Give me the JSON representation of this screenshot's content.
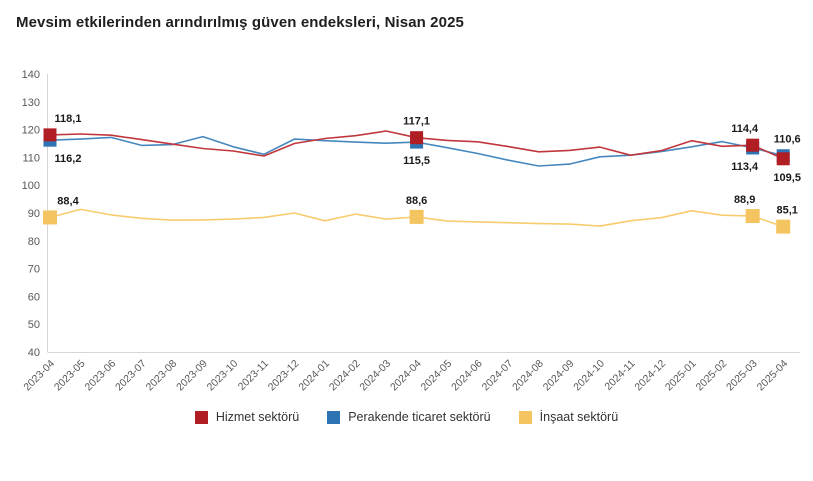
{
  "page": {
    "title": "Mevsim etkilerinden arındırılmış güven endeksleri, Nisan 2025"
  },
  "chart_data": {
    "type": "line",
    "title": "Mevsim etkilerinden arındırılmış güven endeksleri, Nisan 2025",
    "grid": "off",
    "legend_position": "bottom",
    "x_label_rotation": -45,
    "decimal_separator": ",",
    "categories": [
      "2023-04",
      "2023-05",
      "2023-06",
      "2023-07",
      "2023-08",
      "2023-09",
      "2023-10",
      "2023-11",
      "2023-12",
      "2024-01",
      "2024-02",
      "2024-03",
      "2024-04",
      "2024-05",
      "2024-06",
      "2024-07",
      "2024-08",
      "2024-09",
      "2024-10",
      "2024-11",
      "2024-12",
      "2025-01",
      "2025-02",
      "2025-03",
      "2025-04"
    ],
    "y_axis": {
      "min": 40,
      "max": 140,
      "step": 10,
      "ticks": [
        140,
        130,
        120,
        110,
        100,
        90,
        80,
        70,
        60,
        50,
        40
      ]
    },
    "series": [
      {
        "name": "İnşaat sektörü",
        "line_color": "#f8cb6e",
        "marker_color": "#f3c45f",
        "values": [
          88.4,
          91.3,
          89.3,
          88.1,
          87.4,
          87.5,
          87.8,
          88.4,
          90.0,
          87.2,
          89.6,
          87.8,
          88.6,
          87.1,
          86.8,
          86.5,
          86.2,
          86.0,
          85.3,
          87.2,
          88.3,
          90.8,
          89.2,
          88.9,
          85.1
        ]
      },
      {
        "name": "Perakende ticaret sektörü",
        "line_color": "#4688bd",
        "marker_color": "#2e74b5",
        "values": [
          116.2,
          116.6,
          117.2,
          114.3,
          114.6,
          117.5,
          113.8,
          111.1,
          116.6,
          116.0,
          115.5,
          115.1,
          115.5,
          113.5,
          111.4,
          109.0,
          106.9,
          107.6,
          110.2,
          110.8,
          112.1,
          113.8,
          115.7,
          113.4,
          110.6
        ]
      },
      {
        "name": "Hizmet sektörü",
        "line_color": "#c0373d",
        "marker_color": "#b01e24",
        "values": [
          118.1,
          118.4,
          118.0,
          116.4,
          114.8,
          113.2,
          112.3,
          110.5,
          115.0,
          116.8,
          117.8,
          119.5,
          117.1,
          116.1,
          115.6,
          113.9,
          112.0,
          112.5,
          113.7,
          110.8,
          112.4,
          116.0,
          114.0,
          114.4,
          109.5
        ]
      }
    ],
    "legend_order": [
      "Hizmet sektörü",
      "Perakende ticaret sektörü",
      "İnşaat sektörü"
    ],
    "labeled_points": [
      {
        "series": "Hizmet sektörü",
        "category": "2023-04",
        "value": 118.1,
        "label": "118,1",
        "position": "above"
      },
      {
        "series": "Hizmet sektörü",
        "category": "2024-04",
        "value": 117.1,
        "label": "117,1",
        "position": "above"
      },
      {
        "series": "Hizmet sektörü",
        "category": "2025-03",
        "value": 114.4,
        "label": "114,4",
        "position": "above"
      },
      {
        "series": "Hizmet sektörü",
        "category": "2025-04",
        "value": 109.5,
        "label": "109,5",
        "position": "below"
      },
      {
        "series": "Perakende ticaret sektörü",
        "category": "2023-04",
        "value": 116.2,
        "label": "116,2",
        "position": "below"
      },
      {
        "series": "Perakende ticaret sektörü",
        "category": "2024-04",
        "value": 115.5,
        "label": "115,5",
        "position": "below"
      },
      {
        "series": "Perakende ticaret sektörü",
        "category": "2025-03",
        "value": 113.4,
        "label": "113,4",
        "position": "below"
      },
      {
        "series": "Perakende ticaret sektörü",
        "category": "2025-04",
        "value": 110.6,
        "label": "110,6",
        "position": "above"
      },
      {
        "series": "İnşaat sektörü",
        "category": "2023-04",
        "value": 88.4,
        "label": "88,4",
        "position": "above"
      },
      {
        "series": "İnşaat sektörü",
        "category": "2024-04",
        "value": 88.6,
        "label": "88,6",
        "position": "above"
      },
      {
        "series": "İnşaat sektörü",
        "category": "2025-03",
        "value": 88.9,
        "label": "88,9",
        "position": "above"
      },
      {
        "series": "İnşaat sektörü",
        "category": "2025-04",
        "value": 85.1,
        "label": "85,1",
        "position": "above"
      }
    ],
    "axis_color": "#d6d6d6",
    "tick_label_color": "#595959",
    "data_label_color": "#1a1a1a"
  }
}
